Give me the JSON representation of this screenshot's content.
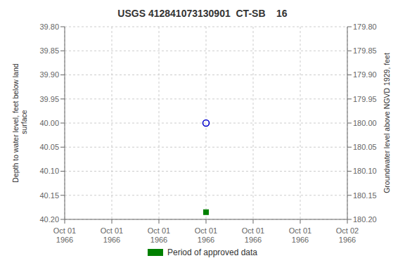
{
  "chart_data": {
    "type": "scatter",
    "title": "USGS 412841073130901  CT-SB    16",
    "ylabel": "Depth to water level, feet below land\n surface",
    "y2label": "Groundwater level above NGVD 1929, feet",
    "categories": [
      "Oct 01\n1966",
      "Oct 01\n1966",
      "Oct 01\n1966",
      "Oct 01\n1966",
      "Oct 01\n1966",
      "Oct 01\n1966",
      "Oct 02\n1966"
    ],
    "series": [
      {
        "color": "#0000cc",
        "marker": "circle",
        "values": [
          null,
          null,
          null,
          40.0,
          null,
          null,
          null
        ]
      },
      {
        "name": "Period of approved data",
        "color": "#008000",
        "marker": "square",
        "values": [
          null,
          null,
          null,
          40.185,
          null,
          null,
          null
        ]
      }
    ],
    "ylim": [
      40.2,
      39.8
    ],
    "yticks": [
      {
        "value": 39.8,
        "label": "39.80"
      },
      {
        "value": 39.85,
        "label": "39.85"
      },
      {
        "value": 39.9,
        "label": "39.90"
      },
      {
        "value": 39.95,
        "label": "39.95"
      },
      {
        "value": 40.0,
        "label": "40.00"
      },
      {
        "value": 40.05,
        "label": "40.05"
      },
      {
        "value": 40.1,
        "label": "40.10"
      },
      {
        "value": 40.15,
        "label": "40.15"
      },
      {
        "value": 40.2,
        "label": "40.20"
      }
    ],
    "y2lim": [
      180.2,
      179.8
    ],
    "y2ticks": [
      {
        "value": 179.8,
        "label": "179.80"
      },
      {
        "value": 179.85,
        "label": "179.85"
      },
      {
        "value": 179.9,
        "label": "179.90"
      },
      {
        "value": 179.95,
        "label": "179.95"
      },
      {
        "value": 180.0,
        "label": "180.00"
      },
      {
        "value": 180.05,
        "label": "180.05"
      },
      {
        "value": 180.1,
        "label": "180.10"
      },
      {
        "value": 180.15,
        "label": "180.15"
      },
      {
        "value": 180.2,
        "label": "180.20"
      }
    ],
    "grid": true,
    "legend": "bottom"
  }
}
